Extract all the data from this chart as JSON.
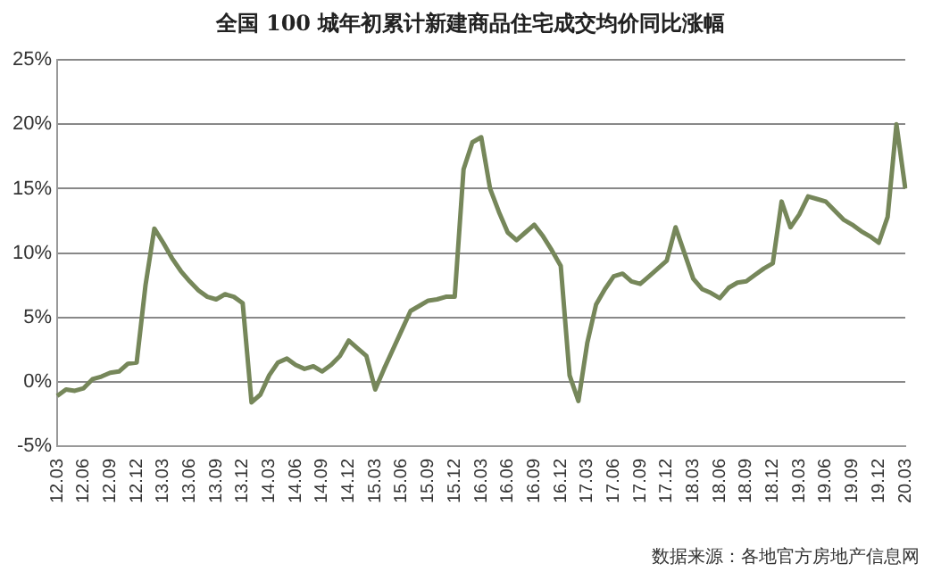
{
  "chart_data": {
    "type": "line",
    "title": "全国 100 城年初累计新建商品住宅成交均价同比涨幅",
    "categories": [
      "12.03",
      null,
      null,
      "12.06",
      null,
      null,
      "12.09",
      null,
      null,
      "12.12",
      null,
      null,
      "13.03",
      null,
      null,
      "13.06",
      null,
      null,
      "13.09",
      null,
      null,
      "13.12",
      null,
      null,
      "14.03",
      null,
      null,
      "14.06",
      null,
      null,
      "14.09",
      null,
      null,
      "14.12",
      null,
      null,
      "15.03",
      null,
      null,
      "15.06",
      null,
      null,
      "15.09",
      null,
      null,
      "15.12",
      null,
      null,
      "16.03",
      null,
      null,
      "16.06",
      null,
      null,
      "16.09",
      null,
      null,
      "16.12",
      null,
      null,
      "17.03",
      null,
      null,
      "17.06",
      null,
      null,
      "17.09",
      null,
      null,
      "17.12",
      null,
      null,
      "18.03",
      null,
      null,
      "18.06",
      null,
      null,
      "18.09",
      null,
      null,
      "18.12",
      null,
      null,
      "19.03",
      null,
      null,
      "19.06",
      null,
      null,
      "19.09",
      null,
      null,
      "19.12",
      null,
      null,
      "20.03"
    ],
    "series": [
      {
        "color": "#76875a",
        "values": [
          -1.1,
          -0.6,
          -0.7,
          -0.5,
          0.2,
          0.4,
          0.7,
          0.8,
          1.4,
          1.5,
          7.5,
          11.9,
          10.8,
          9.6,
          8.6,
          7.8,
          7.1,
          6.6,
          6.4,
          6.8,
          6.6,
          6.1,
          -1.6,
          -1.0,
          0.5,
          1.5,
          1.8,
          1.3,
          1.0,
          1.2,
          0.8,
          1.3,
          2.0,
          3.2,
          2.6,
          2.0,
          -0.6,
          1.0,
          2.5,
          4.0,
          5.5,
          5.9,
          6.3,
          6.4,
          6.6,
          6.6,
          16.5,
          18.6,
          19.0,
          15.0,
          13.2,
          11.6,
          11.0,
          11.6,
          12.2,
          11.3,
          10.2,
          9.0,
          0.5,
          -1.5,
          3.0,
          6.0,
          7.2,
          8.2,
          8.4,
          7.8,
          7.6,
          8.2,
          8.8,
          9.4,
          12.0,
          10.0,
          8.0,
          7.2,
          6.9,
          6.5,
          7.3,
          7.7,
          7.8,
          8.3,
          8.8,
          9.2,
          14.0,
          12.0,
          13.0,
          14.4,
          14.2,
          14.0,
          13.3,
          12.6,
          12.2,
          11.7,
          11.3,
          10.8,
          12.8,
          20.0,
          15.0
        ]
      }
    ],
    "ylim": [
      -5,
      25
    ],
    "yticks": [
      {
        "value": -5,
        "label": "-5%"
      },
      {
        "value": 0,
        "label": "0%"
      },
      {
        "value": 5,
        "label": "5%"
      },
      {
        "value": 10,
        "label": "10%"
      },
      {
        "value": 15,
        "label": "15%"
      },
      {
        "value": 20,
        "label": "20%"
      },
      {
        "value": 25,
        "label": "25%"
      }
    ],
    "grid": "y",
    "legend": false,
    "marker": "none",
    "line_style": "solid",
    "annotations": [
      "数据来源：各地官方房地产信息网"
    ]
  }
}
